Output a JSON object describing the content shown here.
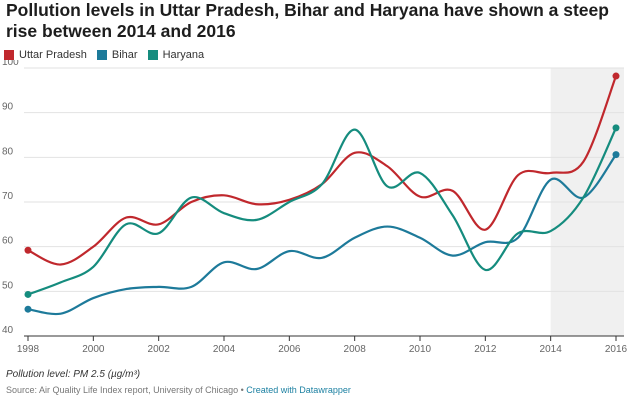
{
  "title": "Pollution levels in Uttar Pradesh, Bihar and Haryana have shown a steep rise between 2014 and 2016",
  "footnote": "Pollution level: PM 2.5 (µg/m³)",
  "source_text": "Source: Air Quality Life Index report, University of Chicago •",
  "credit_text": "Created with Datawrapper",
  "chart_data": {
    "type": "line",
    "title": "Pollution levels in Uttar Pradesh, Bihar and Haryana have shown a steep rise between 2014 and 2016",
    "xlabel": "",
    "ylabel": "",
    "x": [
      1998,
      1999,
      2000,
      2001,
      2002,
      2003,
      2004,
      2005,
      2006,
      2007,
      2008,
      2009,
      2010,
      2011,
      2012,
      2013,
      2014,
      2015,
      2016
    ],
    "xticks": [
      "1998",
      "2000",
      "2002",
      "2004",
      "2006",
      "2008",
      "2010",
      "2012",
      "2014",
      "2016"
    ],
    "yticks": [
      "40",
      "50",
      "60",
      "70",
      "80",
      "90",
      "100"
    ],
    "ylim": [
      40,
      100
    ],
    "xlim": [
      1998,
      2016
    ],
    "grid": "horizontal",
    "legend_position": "top-left",
    "highlight_range": [
      2014,
      2016
    ],
    "series": [
      {
        "name": "Uttar Pradesh",
        "color": "#c0282d",
        "values": [
          59.2,
          56.0,
          60.0,
          66.5,
          65.0,
          70.0,
          71.5,
          69.5,
          70.5,
          74.0,
          81.0,
          78.0,
          71.2,
          72.5,
          63.8,
          76.0,
          76.5,
          79.0,
          98.2
        ]
      },
      {
        "name": "Bihar",
        "color": "#1d7a9a",
        "values": [
          46.0,
          45.0,
          48.5,
          50.5,
          51.0,
          51.0,
          56.5,
          55.0,
          59.0,
          57.5,
          62.0,
          64.5,
          62.0,
          58.0,
          61.0,
          62.0,
          75.0,
          71.0,
          80.6
        ]
      },
      {
        "name": "Haryana",
        "color": "#158c7e",
        "values": [
          49.3,
          52.0,
          55.5,
          65.0,
          63.0,
          71.0,
          67.5,
          66.0,
          70.0,
          74.0,
          86.2,
          73.5,
          76.5,
          67.0,
          54.8,
          63.0,
          63.5,
          71.0,
          86.6
        ]
      }
    ]
  }
}
